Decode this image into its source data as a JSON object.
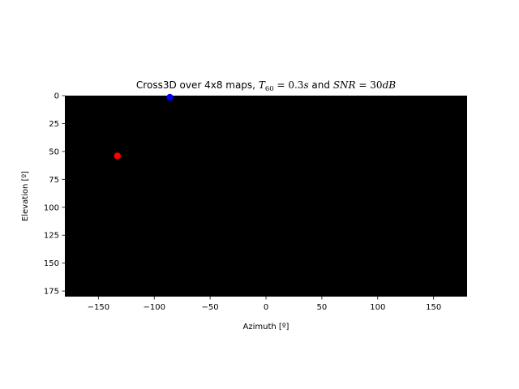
{
  "chart_data": {
    "type": "scatter",
    "title": {
      "prefix": "Cross3D over 4x8 maps, ",
      "t_var": "T",
      "t_sub": "60",
      "t_eq": " = ",
      "t_val": "0.3",
      "t_unit": "s",
      "mid": " and ",
      "snr_var": "SNR",
      "snr_eq": " = ",
      "snr_val": "30",
      "snr_unit": "dB"
    },
    "xlabel": "Azimuth [º]",
    "ylabel": "Elevation [º]",
    "xlim": [
      -180,
      180
    ],
    "ylim": [
      180,
      0
    ],
    "y_inverted": true,
    "grid": false,
    "background_color": "#000000",
    "xticks": [
      -150,
      -100,
      -50,
      0,
      50,
      100,
      150
    ],
    "xtick_labels": [
      "−150",
      "−100",
      "−50",
      "0",
      "50",
      "100",
      "150"
    ],
    "yticks": [
      0,
      25,
      50,
      75,
      100,
      125,
      150,
      175
    ],
    "ytick_labels": [
      "0",
      "25",
      "50",
      "75",
      "100",
      "125",
      "150",
      "175"
    ],
    "series": [
      {
        "color": "#0000ff",
        "points": [
          {
            "x": -86,
            "y": 1.5
          }
        ]
      },
      {
        "color": "#ff0000",
        "points": [
          {
            "x": -133,
            "y": 54
          }
        ]
      }
    ]
  }
}
